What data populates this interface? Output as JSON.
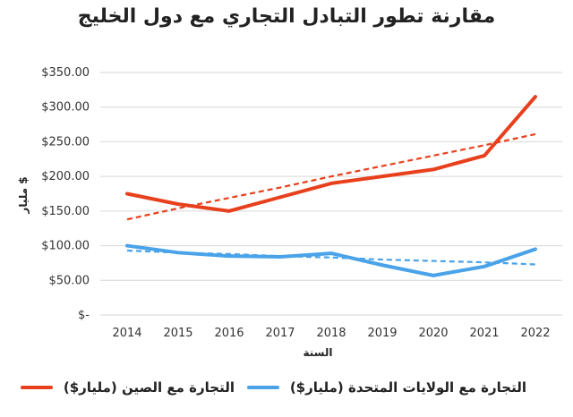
{
  "title": "مقارنة تطور التبادل التجاري مع دول الخليج",
  "chart_data": {
    "type": "line",
    "title": "مقارنة تطور التبادل التجاري مع دول الخليج",
    "xlabel": "السنة",
    "ylabel": "مليار $",
    "categories": [
      "2014",
      "2015",
      "2016",
      "2017",
      "2018",
      "2019",
      "2020",
      "2021",
      "2022"
    ],
    "ylim": [
      0,
      350
    ],
    "yticks": [
      0,
      50,
      100,
      150,
      200,
      250,
      300,
      350
    ],
    "ytick_labels": [
      "$-",
      "$50.00",
      "$100.00",
      "$150.00",
      "$200.00",
      "$250.00",
      "$300.00",
      "$350.00"
    ],
    "grid": true,
    "legend_position": "bottom",
    "series": [
      {
        "name": "التجارة مع الصين (مليار$)",
        "color": "#e8401c",
        "values": [
          175,
          160,
          150,
          170,
          190,
          200,
          210,
          230,
          315
        ],
        "trendline": [
          138,
          154,
          169,
          184,
          200,
          215,
          230,
          245,
          261
        ]
      },
      {
        "name": "التجارة مع الولايات المتحدة (مليار$)",
        "color": "#4aa3e8",
        "values": [
          100,
          90,
          85,
          84,
          89,
          72,
          57,
          70,
          95
        ],
        "trendline": [
          93,
          90,
          88,
          85,
          83,
          80,
          78,
          76,
          73
        ]
      }
    ]
  }
}
